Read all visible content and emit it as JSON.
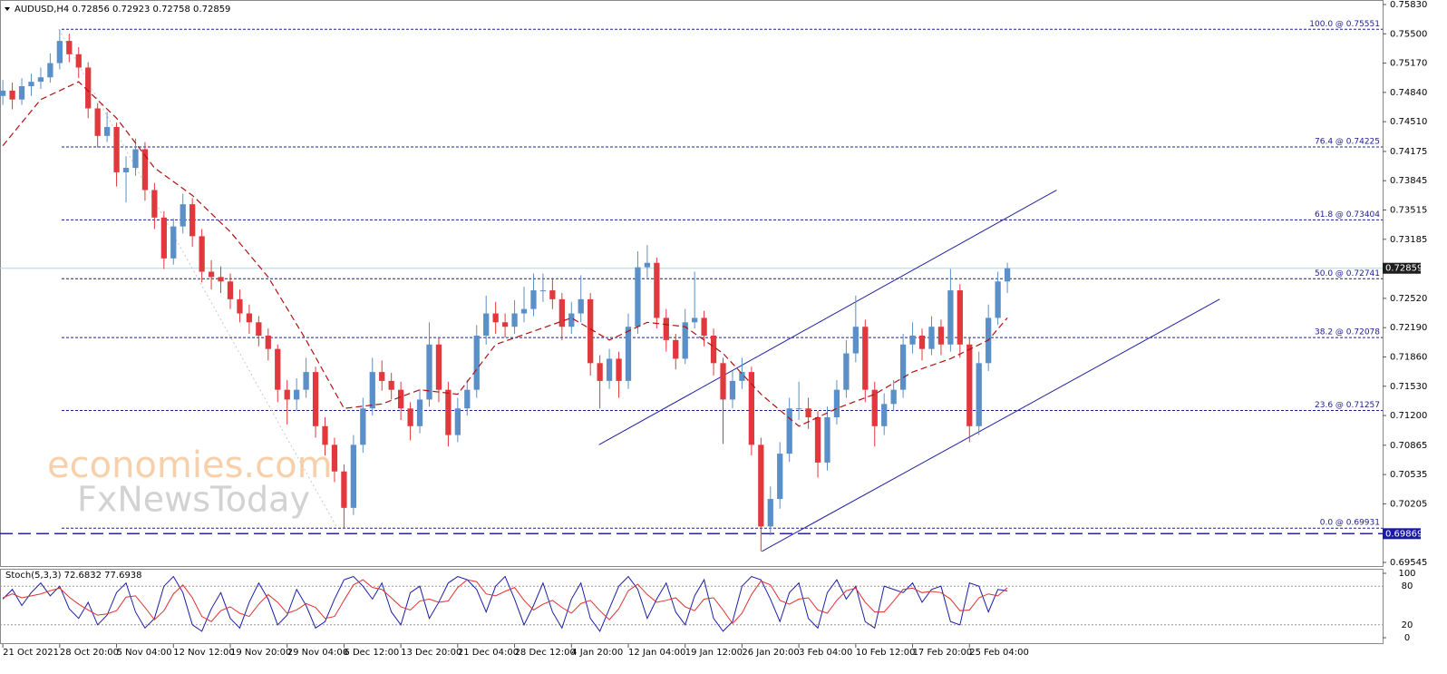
{
  "watermark": {
    "line1": "economies.com",
    "line2": "FxNewsToday"
  },
  "chart_data": [
    {
      "type": "candlestick",
      "title": "AUDUSD,H4  0.72856 0.72923 0.72758 0.72859",
      "up_color": "#5b8fc7",
      "down_color": "#e0383c",
      "xlim": [
        -0.3,
        145.6
      ],
      "xticks": [
        {
          "value": 0,
          "label": "21 Oct 2021"
        },
        {
          "value": 6,
          "label": "28 Oct 20:00"
        },
        {
          "value": 12,
          "label": "5 Nov 04:00"
        },
        {
          "value": 18,
          "label": "12 Nov 12:00"
        },
        {
          "value": 24,
          "label": "19 Nov 20:00"
        },
        {
          "value": 30,
          "label": "29 Nov 04:00"
        },
        {
          "value": 36,
          "label": "6 Dec 12:00"
        },
        {
          "value": 42,
          "label": "13 Dec 20:00"
        },
        {
          "value": 48,
          "label": "21 Dec 04:00"
        },
        {
          "value": 54,
          "label": "28 Dec 12:00"
        },
        {
          "value": 60,
          "label": "4 Jan 20:00"
        },
        {
          "value": 66,
          "label": "12 Jan 04:00"
        },
        {
          "value": 72,
          "label": "19 Jan 12:00"
        },
        {
          "value": 78,
          "label": "26 Jan 20:00"
        },
        {
          "value": 84,
          "label": "3 Feb 04:00"
        },
        {
          "value": 90,
          "label": "10 Feb 12:00"
        },
        {
          "value": 96,
          "label": "17 Feb 20:00"
        },
        {
          "value": 102,
          "label": "25 Feb 04:00"
        }
      ],
      "ylim": [
        0.69494,
        0.75881
      ],
      "yticks": [
        {
          "value": 0.7583,
          "label": "0.75830"
        },
        {
          "value": 0.755,
          "label": "0.75500"
        },
        {
          "value": 0.7517,
          "label": "0.75170"
        },
        {
          "value": 0.7484,
          "label": "0.74840"
        },
        {
          "value": 0.7451,
          "label": "0.74510"
        },
        0.74175,
        0.73845,
        0.73515,
        0.73185,
        {
          "value": 0.7252,
          "label": "0.72520"
        },
        {
          "value": 0.7219,
          "label": "0.72190"
        },
        {
          "value": 0.7186,
          "label": "0.71860"
        },
        {
          "value": 0.7153,
          "label": "0.71530"
        },
        {
          "value": 0.712,
          "label": "0.71200"
        },
        0.70865,
        0.70535,
        0.70205,
        0.69545
      ],
      "ohlc": [
        [
          0.748,
          0.7498,
          0.747,
          0.7486
        ],
        [
          0.7486,
          0.7495,
          0.7465,
          0.7476
        ],
        [
          0.7476,
          0.75,
          0.747,
          0.7491
        ],
        [
          0.7491,
          0.7505,
          0.748,
          0.7496
        ],
        [
          0.7496,
          0.7512,
          0.7488,
          0.7501
        ],
        [
          0.7501,
          0.7528,
          0.7495,
          0.7517
        ],
        [
          0.7517,
          0.7555,
          0.751,
          0.7542
        ],
        [
          0.7542,
          0.755,
          0.7518,
          0.7527
        ],
        [
          0.7527,
          0.7535,
          0.75,
          0.7512
        ],
        [
          0.7512,
          0.7518,
          0.7455,
          0.7466
        ],
        [
          0.7466,
          0.7472,
          0.7422,
          0.7435
        ],
        [
          0.7435,
          0.7462,
          0.7428,
          0.7445
        ],
        [
          0.7445,
          0.745,
          0.7378,
          0.7394
        ],
        [
          0.7394,
          0.7412,
          0.736,
          0.7399
        ],
        [
          0.7399,
          0.7432,
          0.739,
          0.742
        ],
        [
          0.742,
          0.7428,
          0.7362,
          0.7374
        ],
        [
          0.7374,
          0.7382,
          0.733,
          0.7343
        ],
        [
          0.7343,
          0.735,
          0.7285,
          0.7297
        ],
        [
          0.7297,
          0.7342,
          0.729,
          0.7333
        ],
        [
          0.7333,
          0.737,
          0.7325,
          0.7358
        ],
        [
          0.7358,
          0.7365,
          0.731,
          0.7322
        ],
        [
          0.7322,
          0.733,
          0.727,
          0.7282
        ],
        [
          0.7282,
          0.7295,
          0.7262,
          0.7276
        ],
        [
          0.7276,
          0.7288,
          0.7258,
          0.7271
        ],
        [
          0.7271,
          0.728,
          0.724,
          0.7251
        ],
        [
          0.7251,
          0.7262,
          0.7225,
          0.7235
        ],
        [
          0.7235,
          0.7245,
          0.7212,
          0.7225
        ],
        [
          0.7225,
          0.7232,
          0.7198,
          0.721
        ],
        [
          0.721,
          0.7218,
          0.7182,
          0.7195
        ],
        [
          0.7195,
          0.72,
          0.7135,
          0.7149
        ],
        [
          0.7149,
          0.716,
          0.711,
          0.7138
        ],
        [
          0.7138,
          0.7162,
          0.7125,
          0.7149
        ],
        [
          0.7149,
          0.7185,
          0.714,
          0.7169
        ],
        [
          0.7169,
          0.7175,
          0.7095,
          0.7108
        ],
        [
          0.7108,
          0.7118,
          0.7075,
          0.7087
        ],
        [
          0.7087,
          0.7095,
          0.7045,
          0.7057
        ],
        [
          0.7057,
          0.7065,
          0.6993,
          0.7016
        ],
        [
          0.7016,
          0.7098,
          0.7008,
          0.7087
        ],
        [
          0.7087,
          0.714,
          0.7078,
          0.7128
        ],
        [
          0.7128,
          0.7185,
          0.712,
          0.7169
        ],
        [
          0.7169,
          0.7182,
          0.7148,
          0.7159
        ],
        [
          0.7159,
          0.7168,
          0.7138,
          0.7149
        ],
        [
          0.7149,
          0.7158,
          0.7115,
          0.7128
        ],
        [
          0.7128,
          0.7135,
          0.7092,
          0.7108
        ],
        [
          0.7108,
          0.715,
          0.71,
          0.7138
        ],
        [
          0.7138,
          0.7225,
          0.713,
          0.72
        ],
        [
          0.72,
          0.7208,
          0.7135,
          0.7149
        ],
        [
          0.7149,
          0.7158,
          0.7085,
          0.7098
        ],
        [
          0.7098,
          0.714,
          0.709,
          0.7128
        ],
        [
          0.7128,
          0.716,
          0.712,
          0.7149
        ],
        [
          0.7149,
          0.7222,
          0.714,
          0.721
        ],
        [
          0.721,
          0.7255,
          0.72,
          0.7235
        ],
        [
          0.7235,
          0.7248,
          0.7212,
          0.7225
        ],
        [
          0.7225,
          0.7235,
          0.7208,
          0.722
        ],
        [
          0.722,
          0.725,
          0.7212,
          0.7235
        ],
        [
          0.7235,
          0.7265,
          0.7225,
          0.724
        ],
        [
          0.724,
          0.728,
          0.7232,
          0.7261
        ],
        [
          0.7261,
          0.728,
          0.7248,
          0.7261
        ],
        [
          0.7261,
          0.7275,
          0.724,
          0.7251
        ],
        [
          0.7251,
          0.7258,
          0.7205,
          0.722
        ],
        [
          0.722,
          0.7248,
          0.7212,
          0.7235
        ],
        [
          0.7235,
          0.7278,
          0.7225,
          0.7251
        ],
        [
          0.7251,
          0.7258,
          0.7165,
          0.7179
        ],
        [
          0.7179,
          0.7188,
          0.7128,
          0.7159
        ],
        [
          0.7159,
          0.7195,
          0.715,
          0.7184
        ],
        [
          0.7184,
          0.7192,
          0.714,
          0.7159
        ],
        [
          0.7159,
          0.7235,
          0.715,
          0.722
        ],
        [
          0.722,
          0.7305,
          0.7212,
          0.7287
        ],
        [
          0.7287,
          0.7312,
          0.7275,
          0.7292
        ],
        [
          0.7292,
          0.7298,
          0.7218,
          0.723
        ],
        [
          0.723,
          0.724,
          0.7192,
          0.7205
        ],
        [
          0.7205,
          0.7212,
          0.7172,
          0.7184
        ],
        [
          0.7184,
          0.724,
          0.7178,
          0.7225
        ],
        [
          0.7225,
          0.7282,
          0.7218,
          0.723
        ],
        [
          0.723,
          0.7238,
          0.7198,
          0.721
        ],
        [
          0.721,
          0.7218,
          0.7165,
          0.7179
        ],
        [
          0.7179,
          0.7185,
          0.7088,
          0.7138
        ],
        [
          0.7138,
          0.717,
          0.7128,
          0.7159
        ],
        [
          0.7159,
          0.7185,
          0.715,
          0.7169
        ],
        [
          0.7169,
          0.7175,
          0.7075,
          0.7087
        ],
        [
          0.7087,
          0.7095,
          0.6967,
          0.6995
        ],
        [
          0.6995,
          0.704,
          0.6985,
          0.7026
        ],
        [
          0.7026,
          0.709,
          0.7015,
          0.7077
        ],
        [
          0.7077,
          0.714,
          0.7068,
          0.7128
        ],
        [
          0.7128,
          0.7158,
          0.7115,
          0.7128
        ],
        [
          0.7128,
          0.714,
          0.7105,
          0.7118
        ],
        [
          0.7118,
          0.7125,
          0.705,
          0.7067
        ],
        [
          0.7067,
          0.713,
          0.7058,
          0.7118
        ],
        [
          0.7118,
          0.716,
          0.711,
          0.7149
        ],
        [
          0.7149,
          0.7205,
          0.714,
          0.719
        ],
        [
          0.719,
          0.7255,
          0.718,
          0.722
        ],
        [
          0.722,
          0.7228,
          0.7135,
          0.7149
        ],
        [
          0.7149,
          0.7158,
          0.7085,
          0.7108
        ],
        [
          0.7108,
          0.7145,
          0.7098,
          0.7133
        ],
        [
          0.7133,
          0.716,
          0.7125,
          0.7149
        ],
        [
          0.7149,
          0.7212,
          0.714,
          0.72
        ],
        [
          0.72,
          0.7225,
          0.719,
          0.721
        ],
        [
          0.721,
          0.7218,
          0.7182,
          0.7195
        ],
        [
          0.7195,
          0.7232,
          0.7188,
          0.722
        ],
        [
          0.722,
          0.7228,
          0.7188,
          0.72
        ],
        [
          0.72,
          0.7285,
          0.7192,
          0.7261
        ],
        [
          0.7261,
          0.7268,
          0.7185,
          0.72
        ],
        [
          0.72,
          0.7208,
          0.709,
          0.7108
        ],
        [
          0.7108,
          0.7192,
          0.7098,
          0.7179
        ],
        [
          0.7179,
          0.7245,
          0.717,
          0.723
        ],
        [
          0.723,
          0.7282,
          0.7222,
          0.7271
        ],
        [
          0.7271,
          0.7292,
          0.7258,
          0.72859
        ]
      ],
      "ma": {
        "color": "#b01010",
        "x": [
          0,
          4,
          8,
          12,
          16,
          20,
          24,
          28,
          32,
          36,
          40,
          44,
          48,
          52,
          56,
          60,
          64,
          68,
          72,
          76,
          80,
          84,
          88,
          92,
          96,
          100,
          104,
          106
        ],
        "values": [
          0.7424,
          0.7476,
          0.7496,
          0.7455,
          0.7399,
          0.7368,
          0.7327,
          0.7276,
          0.7205,
          0.7128,
          0.7133,
          0.7149,
          0.7144,
          0.72,
          0.7215,
          0.723,
          0.7205,
          0.7225,
          0.722,
          0.719,
          0.7144,
          0.7108,
          0.7128,
          0.7144,
          0.7169,
          0.7184,
          0.7205,
          0.723
        ]
      },
      "fib_levels": [
        {
          "label": "100.0 @ 0.75551",
          "value": 0.75551
        },
        {
          "label": "76.4 @ 0.74225",
          "value": 0.74225
        },
        {
          "label": "61.8 @ 0.73404",
          "value": 0.73404
        },
        {
          "label": "50.0 @ 0.72741",
          "value": 0.72741
        },
        {
          "label": "38.2 @ 0.72078",
          "value": 0.72078
        },
        {
          "label": "23.6 @ 0.71257",
          "value": 0.71257
        },
        {
          "label": "0.0 @ 0.69931",
          "value": 0.69931
        }
      ],
      "fib_color": "#1c1c8c",
      "price_lines": [
        {
          "value": 0.72859,
          "color": "#a8d8f0",
          "box": "#1e1e1e"
        },
        {
          "value": 0.69869,
          "color": "#2626a6",
          "box": "#1a1aa6",
          "dashed": true
        }
      ],
      "trendlines": [
        {
          "x": [
            62.9,
            111.2
          ],
          "values": [
            0.7087,
            0.7374
          ],
          "color": "#2020a0"
        },
        {
          "x": [
            80.1,
            128.4
          ],
          "values": [
            0.6967,
            0.7251
          ],
          "color": "#2020a0"
        },
        {
          "x": [
            5.9,
            35.3
          ],
          "values": [
            0.7555,
            0.6993
          ],
          "color": "#c8c8c8",
          "dashed": true
        }
      ]
    },
    {
      "type": "line",
      "title": "Stoch(5,3,3) 72.6832 77.6938",
      "xlim": [
        -0.3,
        145.6
      ],
      "ylim": [
        0,
        100
      ],
      "yticks": [
        0,
        20,
        80,
        100
      ],
      "grid": true,
      "series": [
        {
          "color": "#1c1ca8",
          "values": [
            60,
            75,
            50,
            70,
            85,
            65,
            80,
            45,
            30,
            55,
            20,
            35,
            70,
            85,
            40,
            15,
            30,
            80,
            95,
            70,
            20,
            10,
            45,
            70,
            30,
            15,
            55,
            85,
            60,
            20,
            35,
            75,
            50,
            15,
            25,
            60,
            90,
            95,
            80,
            60,
            85,
            40,
            20,
            70,
            80,
            30,
            55,
            85,
            95,
            90,
            75,
            40,
            80,
            95,
            60,
            20,
            50,
            85,
            40,
            15,
            60,
            85,
            30,
            10,
            45,
            80,
            95,
            75,
            30,
            60,
            85,
            40,
            20,
            65,
            90,
            30,
            10,
            25,
            80,
            95,
            90,
            60,
            25,
            70,
            85,
            30,
            15,
            70,
            90,
            60,
            80,
            25,
            15,
            80,
            75,
            70,
            85,
            55,
            75,
            80,
            25,
            20,
            85,
            80,
            40,
            75,
            72.6832
          ]
        },
        {
          "color": "#e03030",
          "values": [
            62,
            68,
            62,
            65,
            68,
            73,
            77,
            63,
            52,
            43,
            35,
            37,
            42,
            63,
            65,
            47,
            28,
            42,
            68,
            82,
            62,
            33,
            25,
            42,
            48,
            38,
            33,
            52,
            67,
            55,
            38,
            43,
            53,
            47,
            30,
            33,
            58,
            82,
            90,
            78,
            75,
            62,
            48,
            43,
            57,
            60,
            55,
            57,
            78,
            90,
            87,
            68,
            65,
            72,
            78,
            58,
            43,
            52,
            58,
            47,
            38,
            53,
            58,
            42,
            28,
            45,
            73,
            83,
            67,
            55,
            58,
            62,
            48,
            42,
            60,
            62,
            43,
            22,
            38,
            67,
            88,
            82,
            58,
            52,
            60,
            62,
            43,
            38,
            58,
            73,
            77,
            55,
            40,
            40,
            57,
            75,
            77,
            70,
            72,
            70,
            60,
            42,
            43,
            62,
            68,
            65,
            77.6938
          ]
        }
      ]
    }
  ]
}
